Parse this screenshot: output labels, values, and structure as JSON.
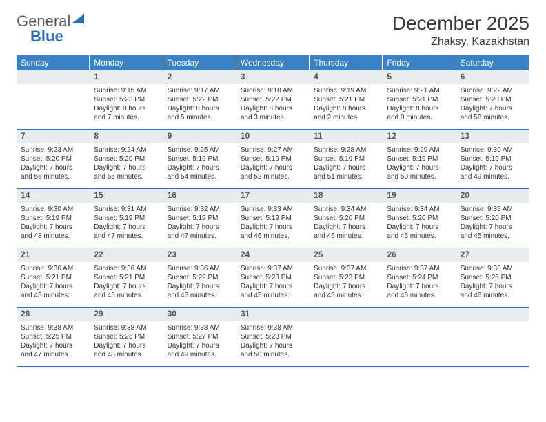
{
  "brand": {
    "part1": "General",
    "part2": "Blue"
  },
  "title": "December 2025",
  "location": "Zhaksy, Kazakhstan",
  "colors": {
    "header_bg": "#3b82c4",
    "header_text": "#ffffff",
    "rule": "#2a6fb5",
    "daynum_bg": "#e8ecef",
    "text": "#333333"
  },
  "weekdays": [
    "Sunday",
    "Monday",
    "Tuesday",
    "Wednesday",
    "Thursday",
    "Friday",
    "Saturday"
  ],
  "weeks": [
    [
      null,
      {
        "n": "1",
        "sr": "9:15 AM",
        "ss": "5:23 PM",
        "dl": "8 hours and 7 minutes."
      },
      {
        "n": "2",
        "sr": "9:17 AM",
        "ss": "5:22 PM",
        "dl": "8 hours and 5 minutes."
      },
      {
        "n": "3",
        "sr": "9:18 AM",
        "ss": "5:22 PM",
        "dl": "8 hours and 3 minutes."
      },
      {
        "n": "4",
        "sr": "9:19 AM",
        "ss": "5:21 PM",
        "dl": "8 hours and 2 minutes."
      },
      {
        "n": "5",
        "sr": "9:21 AM",
        "ss": "5:21 PM",
        "dl": "8 hours and 0 minutes."
      },
      {
        "n": "6",
        "sr": "9:22 AM",
        "ss": "5:20 PM",
        "dl": "7 hours and 58 minutes."
      }
    ],
    [
      {
        "n": "7",
        "sr": "9:23 AM",
        "ss": "5:20 PM",
        "dl": "7 hours and 56 minutes."
      },
      {
        "n": "8",
        "sr": "9:24 AM",
        "ss": "5:20 PM",
        "dl": "7 hours and 55 minutes."
      },
      {
        "n": "9",
        "sr": "9:25 AM",
        "ss": "5:19 PM",
        "dl": "7 hours and 54 minutes."
      },
      {
        "n": "10",
        "sr": "9:27 AM",
        "ss": "5:19 PM",
        "dl": "7 hours and 52 minutes."
      },
      {
        "n": "11",
        "sr": "9:28 AM",
        "ss": "5:19 PM",
        "dl": "7 hours and 51 minutes."
      },
      {
        "n": "12",
        "sr": "9:29 AM",
        "ss": "5:19 PM",
        "dl": "7 hours and 50 minutes."
      },
      {
        "n": "13",
        "sr": "9:30 AM",
        "ss": "5:19 PM",
        "dl": "7 hours and 49 minutes."
      }
    ],
    [
      {
        "n": "14",
        "sr": "9:30 AM",
        "ss": "5:19 PM",
        "dl": "7 hours and 48 minutes."
      },
      {
        "n": "15",
        "sr": "9:31 AM",
        "ss": "5:19 PM",
        "dl": "7 hours and 47 minutes."
      },
      {
        "n": "16",
        "sr": "9:32 AM",
        "ss": "5:19 PM",
        "dl": "7 hours and 47 minutes."
      },
      {
        "n": "17",
        "sr": "9:33 AM",
        "ss": "5:19 PM",
        "dl": "7 hours and 46 minutes."
      },
      {
        "n": "18",
        "sr": "9:34 AM",
        "ss": "5:20 PM",
        "dl": "7 hours and 46 minutes."
      },
      {
        "n": "19",
        "sr": "9:34 AM",
        "ss": "5:20 PM",
        "dl": "7 hours and 45 minutes."
      },
      {
        "n": "20",
        "sr": "9:35 AM",
        "ss": "5:20 PM",
        "dl": "7 hours and 45 minutes."
      }
    ],
    [
      {
        "n": "21",
        "sr": "9:36 AM",
        "ss": "5:21 PM",
        "dl": "7 hours and 45 minutes."
      },
      {
        "n": "22",
        "sr": "9:36 AM",
        "ss": "5:21 PM",
        "dl": "7 hours and 45 minutes."
      },
      {
        "n": "23",
        "sr": "9:36 AM",
        "ss": "5:22 PM",
        "dl": "7 hours and 45 minutes."
      },
      {
        "n": "24",
        "sr": "9:37 AM",
        "ss": "5:23 PM",
        "dl": "7 hours and 45 minutes."
      },
      {
        "n": "25",
        "sr": "9:37 AM",
        "ss": "5:23 PM",
        "dl": "7 hours and 45 minutes."
      },
      {
        "n": "26",
        "sr": "9:37 AM",
        "ss": "5:24 PM",
        "dl": "7 hours and 46 minutes."
      },
      {
        "n": "27",
        "sr": "9:38 AM",
        "ss": "5:25 PM",
        "dl": "7 hours and 46 minutes."
      }
    ],
    [
      {
        "n": "28",
        "sr": "9:38 AM",
        "ss": "5:25 PM",
        "dl": "7 hours and 47 minutes."
      },
      {
        "n": "29",
        "sr": "9:38 AM",
        "ss": "5:26 PM",
        "dl": "7 hours and 48 minutes."
      },
      {
        "n": "30",
        "sr": "9:38 AM",
        "ss": "5:27 PM",
        "dl": "7 hours and 49 minutes."
      },
      {
        "n": "31",
        "sr": "9:38 AM",
        "ss": "5:28 PM",
        "dl": "7 hours and 50 minutes."
      },
      null,
      null,
      null
    ]
  ],
  "labels": {
    "sunrise": "Sunrise:",
    "sunset": "Sunset:",
    "daylight": "Daylight:"
  }
}
